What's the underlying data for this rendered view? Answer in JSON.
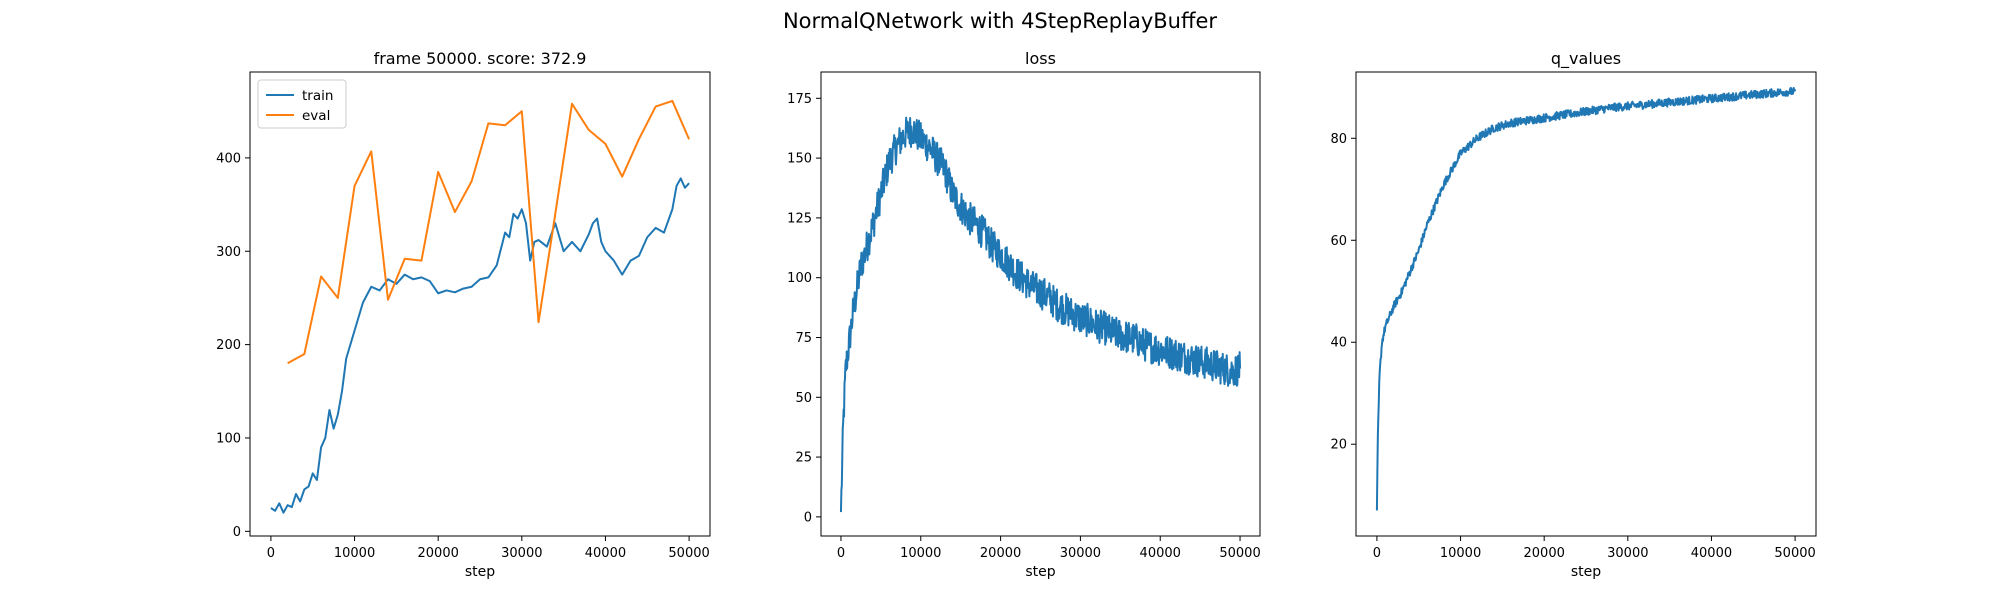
{
  "figure": {
    "suptitle": "NormalQNetwork with 4StepReplayBuffer",
    "colors": {
      "train": "#1f77b4",
      "eval": "#ff7f0e",
      "loss": "#1f77b4",
      "q_values": "#1f77b4"
    }
  },
  "chart_data": [
    {
      "type": "line",
      "title": "frame 50000. score: 372.9",
      "xlabel": "step",
      "ylabel": "",
      "xlim": [
        -2500,
        52500
      ],
      "ylim": [
        -5,
        492
      ],
      "xticks": [
        0,
        10000,
        20000,
        30000,
        40000,
        50000
      ],
      "yticks": [
        0,
        100,
        200,
        300,
        400
      ],
      "legend": "top-left",
      "series": [
        {
          "name": "train",
          "x": [
            0,
            500,
            1000,
            1500,
            2000,
            2500,
            3000,
            3500,
            4000,
            4500,
            5000,
            5500,
            6000,
            6500,
            7000,
            7500,
            8000,
            8500,
            9000,
            9500,
            10000,
            11000,
            12000,
            13000,
            14000,
            15000,
            16000,
            17000,
            18000,
            19000,
            20000,
            21000,
            22000,
            23000,
            24000,
            25000,
            26000,
            27000,
            28000,
            28500,
            29000,
            29500,
            30000,
            30500,
            31000,
            31500,
            32000,
            33000,
            34000,
            35000,
            36000,
            37000,
            38000,
            38500,
            39000,
            39500,
            40000,
            41000,
            42000,
            43000,
            44000,
            45000,
            46000,
            47000,
            48000,
            48500,
            49000,
            49500,
            50000
          ],
          "values": [
            25,
            22,
            30,
            20,
            28,
            26,
            40,
            32,
            45,
            48,
            62,
            55,
            90,
            100,
            130,
            110,
            125,
            150,
            185,
            200,
            215,
            245,
            262,
            258,
            270,
            265,
            275,
            270,
            272,
            268,
            255,
            258,
            256,
            260,
            262,
            270,
            272,
            285,
            320,
            315,
            340,
            335,
            345,
            330,
            290,
            310,
            312,
            305,
            330,
            300,
            310,
            300,
            318,
            330,
            335,
            310,
            300,
            290,
            275,
            290,
            295,
            315,
            325,
            320,
            345,
            370,
            378,
            368,
            372.9
          ]
        },
        {
          "name": "eval",
          "x": [
            2000,
            4000,
            6000,
            8000,
            10000,
            12000,
            14000,
            16000,
            18000,
            20000,
            22000,
            24000,
            26000,
            28000,
            30000,
            32000,
            34000,
            36000,
            38000,
            40000,
            42000,
            44000,
            46000,
            48000,
            50000
          ],
          "values": [
            180,
            190,
            273,
            250,
            370,
            407,
            248,
            292,
            290,
            385,
            342,
            375,
            437,
            435,
            450,
            224,
            340,
            458,
            430,
            415,
            380,
            420,
            455,
            461,
            420
          ]
        }
      ]
    },
    {
      "type": "line",
      "title": "loss",
      "xlabel": "step",
      "ylabel": "",
      "xlim": [
        -2500,
        52500
      ],
      "ylim": [
        -8,
        186
      ],
      "xticks": [
        0,
        10000,
        20000,
        30000,
        40000,
        50000
      ],
      "yticks": [
        0,
        25,
        50,
        75,
        100,
        125,
        150,
        175
      ],
      "series": [
        {
          "name": "",
          "x": [
            0,
            300,
            600,
            1000,
            1500,
            2000,
            2500,
            3000,
            4000,
            5000,
            6000,
            7000,
            8000,
            9000,
            10000,
            11000,
            12000,
            13000,
            14000,
            15000,
            16000,
            17000,
            18000,
            19000,
            20000,
            21000,
            22000,
            23000,
            24000,
            25000,
            26000,
            27000,
            28000,
            29000,
            30000,
            31000,
            32000,
            33000,
            34000,
            35000,
            36000,
            37000,
            38000,
            39000,
            40000,
            41000,
            42000,
            43000,
            44000,
            45000,
            46000,
            47000,
            48000,
            49000,
            50000
          ],
          "values": [
            2,
            40,
            62,
            72,
            85,
            95,
            105,
            110,
            122,
            135,
            148,
            155,
            160,
            162,
            158,
            155,
            150,
            145,
            135,
            130,
            125,
            122,
            118,
            113,
            110,
            106,
            102,
            99,
            96,
            94,
            92,
            89,
            87,
            85,
            83,
            82,
            80,
            79,
            77,
            76,
            75,
            74,
            72,
            71,
            70,
            69,
            68,
            67,
            66,
            65,
            64,
            63,
            62,
            61,
            62
          ],
          "noise": 7
        }
      ]
    },
    {
      "type": "line",
      "title": "q_values",
      "xlabel": "step",
      "ylabel": "",
      "xlim": [
        -2500,
        52500
      ],
      "ylim": [
        2,
        93
      ],
      "xticks": [
        0,
        10000,
        20000,
        30000,
        40000,
        50000
      ],
      "yticks": [
        20,
        40,
        60,
        80
      ],
      "series": [
        {
          "name": "",
          "x": [
            0,
            100,
            300,
            600,
            1000,
            1500,
            2000,
            3000,
            4000,
            5000,
            6000,
            7000,
            8000,
            9000,
            10000,
            12000,
            14000,
            16000,
            18000,
            20000,
            22000,
            24000,
            26000,
            28000,
            30000,
            32000,
            34000,
            36000,
            38000,
            40000,
            42000,
            44000,
            46000,
            48000,
            50000
          ],
          "values": [
            7,
            20,
            33,
            40,
            43,
            45,
            47,
            50,
            54,
            58,
            63,
            67,
            71,
            74,
            77,
            80,
            82,
            83,
            83.5,
            84,
            84.5,
            85,
            85.5,
            86,
            86.3,
            86.6,
            86.9,
            87.2,
            87.5,
            87.8,
            88.1,
            88.4,
            88.7,
            89,
            89.2
          ],
          "noise": 0.8
        }
      ]
    }
  ]
}
